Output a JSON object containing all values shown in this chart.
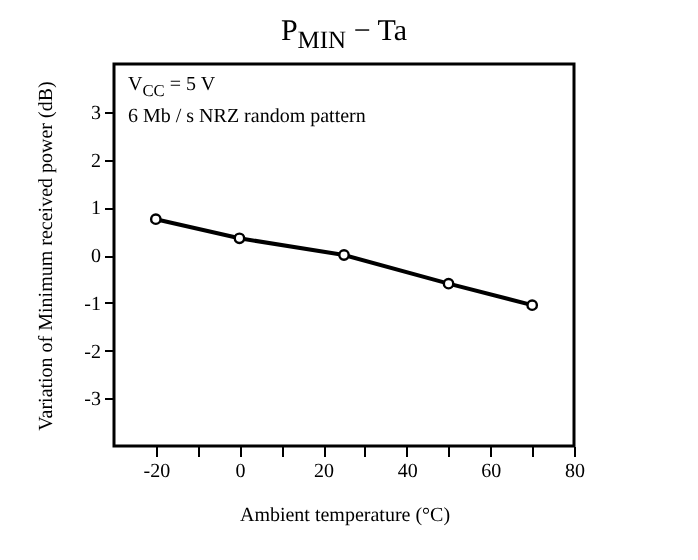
{
  "chart_data": {
    "type": "line",
    "title": "P$_{MIN}$ − Ta",
    "xlabel": "Ambient temperature   (°C)",
    "ylabel": "Variation of Minimum received power   (dB)",
    "annotations": [
      "V$_{CC}$ = 5 V",
      "6 Mb / s NRZ random pattern"
    ],
    "x": [
      -20,
      0,
      25,
      50,
      70
    ],
    "series": [
      {
        "color": "#000000",
        "values": [
          0.75,
          0.35,
          0,
          -0.6,
          -1.05
        ]
      }
    ],
    "xlim": [
      -30,
      80
    ],
    "xticks": [
      -20,
      {
        "value": -10,
        "label": null
      },
      0,
      {
        "value": 10,
        "label": null
      },
      20,
      {
        "value": 30,
        "label": null
      },
      40,
      {
        "value": 50,
        "label": null
      },
      60,
      {
        "value": 70,
        "label": null
      },
      80
    ],
    "ylim": [
      -4,
      4
    ],
    "yticks": [
      -3,
      -2,
      -1,
      0,
      1,
      2,
      3
    ],
    "marker": "circle",
    "line_style": "solid",
    "grid": false,
    "legend": false
  }
}
